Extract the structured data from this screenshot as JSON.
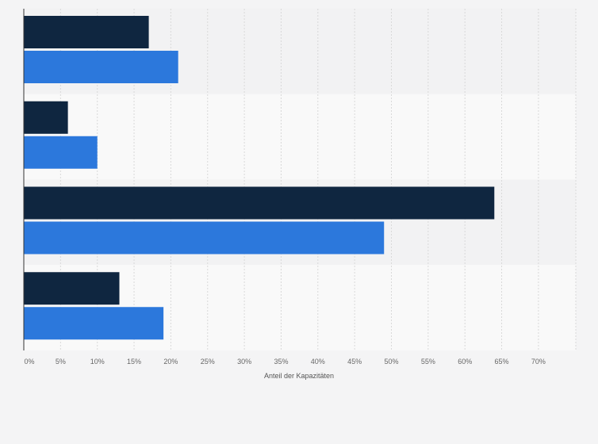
{
  "chart_data": {
    "type": "bar",
    "orientation": "horizontal",
    "categories": [
      "",
      "",
      "",
      ""
    ],
    "series": [
      {
        "values": [
          17,
          6,
          64,
          13
        ],
        "color": "#0f2640"
      },
      {
        "values": [
          21,
          10,
          49,
          19
        ],
        "color": "#2c78dc"
      }
    ],
    "xlabel": "Anteil der Kapazitäten",
    "ylabel": "",
    "xlim": [
      0,
      75
    ],
    "xticks": [
      {
        "value": 0,
        "label": "0%"
      },
      {
        "value": 5,
        "label": "5%"
      },
      {
        "value": 10,
        "label": "10%"
      },
      {
        "value": 15,
        "label": "15%"
      },
      {
        "value": 20,
        "label": "20%"
      },
      {
        "value": 25,
        "label": "25%"
      },
      {
        "value": 30,
        "label": "30%"
      },
      {
        "value": 35,
        "label": "35%"
      },
      {
        "value": 40,
        "label": "40%"
      },
      {
        "value": 45,
        "label": "45%"
      },
      {
        "value": 50,
        "label": "50%"
      },
      {
        "value": 55,
        "label": "55%"
      },
      {
        "value": 60,
        "label": "60%"
      },
      {
        "value": 65,
        "label": "65%"
      },
      {
        "value": 70,
        "label": "70%"
      }
    ],
    "grid": true,
    "legend": "none",
    "background_color": "#f4f4f5",
    "band_colors": [
      "#f2f2f3",
      "#f9f9f9"
    ],
    "gridline_color": "#d9d9d9"
  }
}
